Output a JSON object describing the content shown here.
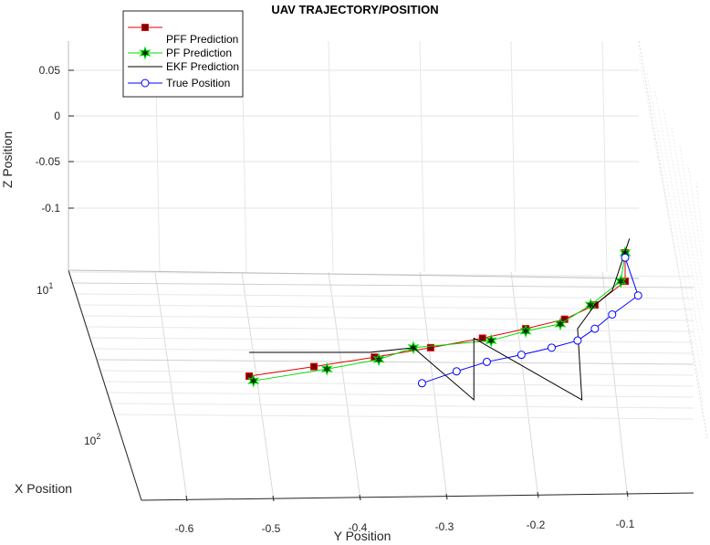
{
  "chart_data": {
    "type": "line",
    "title": "UAV TRAJECTORY/POSITION",
    "xlabel": "X Position",
    "ylabel": "Y Position",
    "zlabel": "Z Position",
    "y_ticks": [
      "-0.6",
      "-0.5",
      "-0.4",
      "-0.3",
      "-0.2",
      "-0.1"
    ],
    "z_ticks": [
      "0.05",
      "0",
      "-0.05",
      "-0.1"
    ],
    "x_ticks": [
      {
        "base": "10",
        "exp": "1"
      },
      {
        "base": "10",
        "exp": "2"
      }
    ],
    "x_scale": "log",
    "grid": true,
    "legend_position": "top-left",
    "series": [
      {
        "name": "PFF Prediction",
        "color": "#e00000",
        "marker": "square",
        "marker_fill": "#7a0000",
        "points": [
          [
            -0.52,
            -0.15
          ],
          [
            -0.445,
            -0.13
          ],
          [
            -0.375,
            -0.11
          ],
          [
            -0.31,
            -0.09
          ],
          [
            -0.25,
            -0.07
          ],
          [
            -0.2,
            -0.05
          ],
          [
            -0.155,
            -0.03
          ],
          [
            -0.12,
            0.0
          ],
          [
            -0.085,
            0.05
          ],
          [
            -0.085,
            0.11
          ]
        ]
      },
      {
        "name": "PF Prediction",
        "color": "#00dd00",
        "marker": "star",
        "marker_fill": "#003300",
        "points": [
          [
            -0.515,
            -0.16
          ],
          [
            -0.43,
            -0.135
          ],
          [
            -0.37,
            -0.115
          ],
          [
            -0.33,
            -0.09
          ],
          [
            -0.24,
            -0.075
          ],
          [
            -0.2,
            -0.055
          ],
          [
            -0.16,
            -0.04
          ],
          [
            -0.125,
            0.0
          ],
          [
            -0.09,
            0.05
          ],
          [
            -0.085,
            0.11
          ]
        ]
      },
      {
        "name": "EKF Prediction",
        "color": "#000000",
        "marker": "none",
        "marker_fill": "#000000",
        "points": [
          [
            -0.52,
            -0.1
          ],
          [
            -0.38,
            -0.1
          ],
          [
            -0.33,
            -0.09
          ],
          [
            -0.26,
            -0.2
          ],
          [
            -0.26,
            -0.07
          ],
          [
            -0.135,
            -0.2
          ],
          [
            -0.14,
            -0.05
          ],
          [
            -0.12,
            0.0
          ],
          [
            -0.1,
            0.03
          ],
          [
            -0.08,
            0.14
          ]
        ]
      },
      {
        "name": "True Position",
        "color": "#0000ff",
        "marker": "circle",
        "marker_fill": "none",
        "points": [
          [
            -0.32,
            -0.165
          ],
          [
            -0.28,
            -0.14
          ],
          [
            -0.245,
            -0.12
          ],
          [
            -0.205,
            -0.105
          ],
          [
            -0.17,
            -0.09
          ],
          [
            -0.14,
            -0.075
          ],
          [
            -0.12,
            -0.05
          ],
          [
            -0.1,
            -0.02
          ],
          [
            -0.07,
            0.02
          ],
          [
            -0.085,
            0.1
          ]
        ]
      }
    ]
  }
}
